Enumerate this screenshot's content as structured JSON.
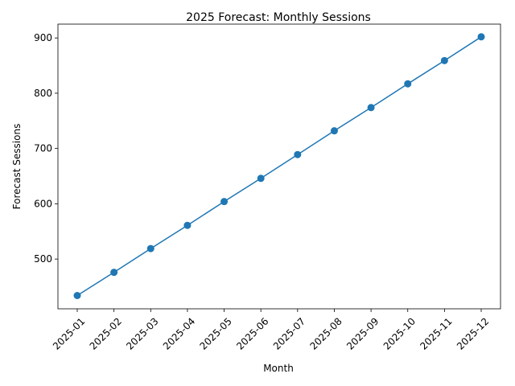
{
  "chart_data": {
    "type": "line",
    "title": "2025 Forecast: Monthly Sessions",
    "xlabel": "Month",
    "ylabel": "Forecast Sessions",
    "categories": [
      "2025-01",
      "2025-02",
      "2025-03",
      "2025-04",
      "2025-05",
      "2025-06",
      "2025-07",
      "2025-08",
      "2025-09",
      "2025-10",
      "2025-11",
      "2025-12"
    ],
    "series": [
      {
        "values": [
          434,
          476,
          519,
          561,
          604,
          646,
          689,
          732,
          774,
          817,
          859,
          902
        ],
        "color": "#1f77b4",
        "marker": "circle"
      }
    ],
    "yticks": [
      500,
      600,
      700,
      800,
      900
    ],
    "ylim": [
      410,
      925
    ],
    "grid": false,
    "legend": "none",
    "xtick_rotation": 45
  }
}
